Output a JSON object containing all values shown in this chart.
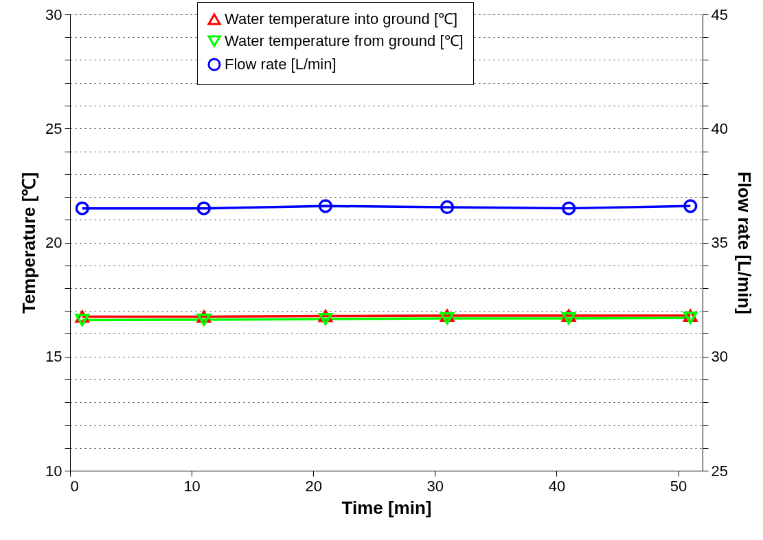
{
  "chart_data": {
    "type": "line",
    "xlabel": "Time [min]",
    "ylabel": "Temperature [℃]",
    "y2label": "Flow rate [L/min]",
    "x": [
      1,
      11,
      21,
      31,
      41,
      51
    ],
    "xlim": [
      0,
      52
    ],
    "xticks": [
      0,
      10,
      20,
      30,
      40,
      50
    ],
    "ylim": [
      10,
      30
    ],
    "yticks": [
      10,
      {
        "value": 11,
        "label": null
      },
      {
        "value": 12,
        "label": null
      },
      {
        "value": 13,
        "label": null
      },
      {
        "value": 14,
        "label": null
      },
      15,
      {
        "value": 16,
        "label": null
      },
      {
        "value": 17,
        "label": null
      },
      {
        "value": 18,
        "label": null
      },
      {
        "value": 19,
        "label": null
      },
      20,
      {
        "value": 21,
        "label": null
      },
      {
        "value": 22,
        "label": null
      },
      {
        "value": 23,
        "label": null
      },
      {
        "value": 24,
        "label": null
      },
      25,
      {
        "value": 26,
        "label": null
      },
      {
        "value": 27,
        "label": null
      },
      {
        "value": 28,
        "label": null
      },
      {
        "value": 29,
        "label": null
      },
      30
    ],
    "y2lim": [
      25,
      45
    ],
    "y2ticks": [
      25,
      {
        "value": 26,
        "label": null
      },
      {
        "value": 27,
        "label": null
      },
      {
        "value": 28,
        "label": null
      },
      {
        "value": 29,
        "label": null
      },
      30,
      {
        "value": 31,
        "label": null
      },
      {
        "value": 32,
        "label": null
      },
      {
        "value": 33,
        "label": null
      },
      {
        "value": 34,
        "label": null
      },
      35,
      {
        "value": 36,
        "label": null
      },
      {
        "value": 37,
        "label": null
      },
      {
        "value": 38,
        "label": null
      },
      {
        "value": 39,
        "label": null
      },
      40,
      {
        "value": 41,
        "label": null
      },
      {
        "value": 42,
        "label": null
      },
      {
        "value": 43,
        "label": null
      },
      {
        "value": 44,
        "label": null
      },
      45
    ],
    "grid": "y",
    "legend": "top",
    "line_style": "solid",
    "series": [
      {
        "name": "Water temperature into ground [℃]",
        "color": "#ff0000",
        "marker": "triangle",
        "values": [
          16.75,
          16.75,
          16.78,
          16.8,
          16.8,
          16.8
        ]
      },
      {
        "name": "Water temperature from ground [℃]",
        "color": "#00ff00",
        "marker": "triangle-down",
        "values": [
          16.6,
          16.62,
          16.65,
          16.68,
          16.68,
          16.7
        ]
      },
      {
        "name": "Flow rate [L/min]",
        "color": "#0000ff",
        "marker": "circle",
        "axis": "y2",
        "values": [
          36.5,
          36.5,
          36.6,
          36.55,
          36.5,
          36.6
        ]
      }
    ]
  }
}
